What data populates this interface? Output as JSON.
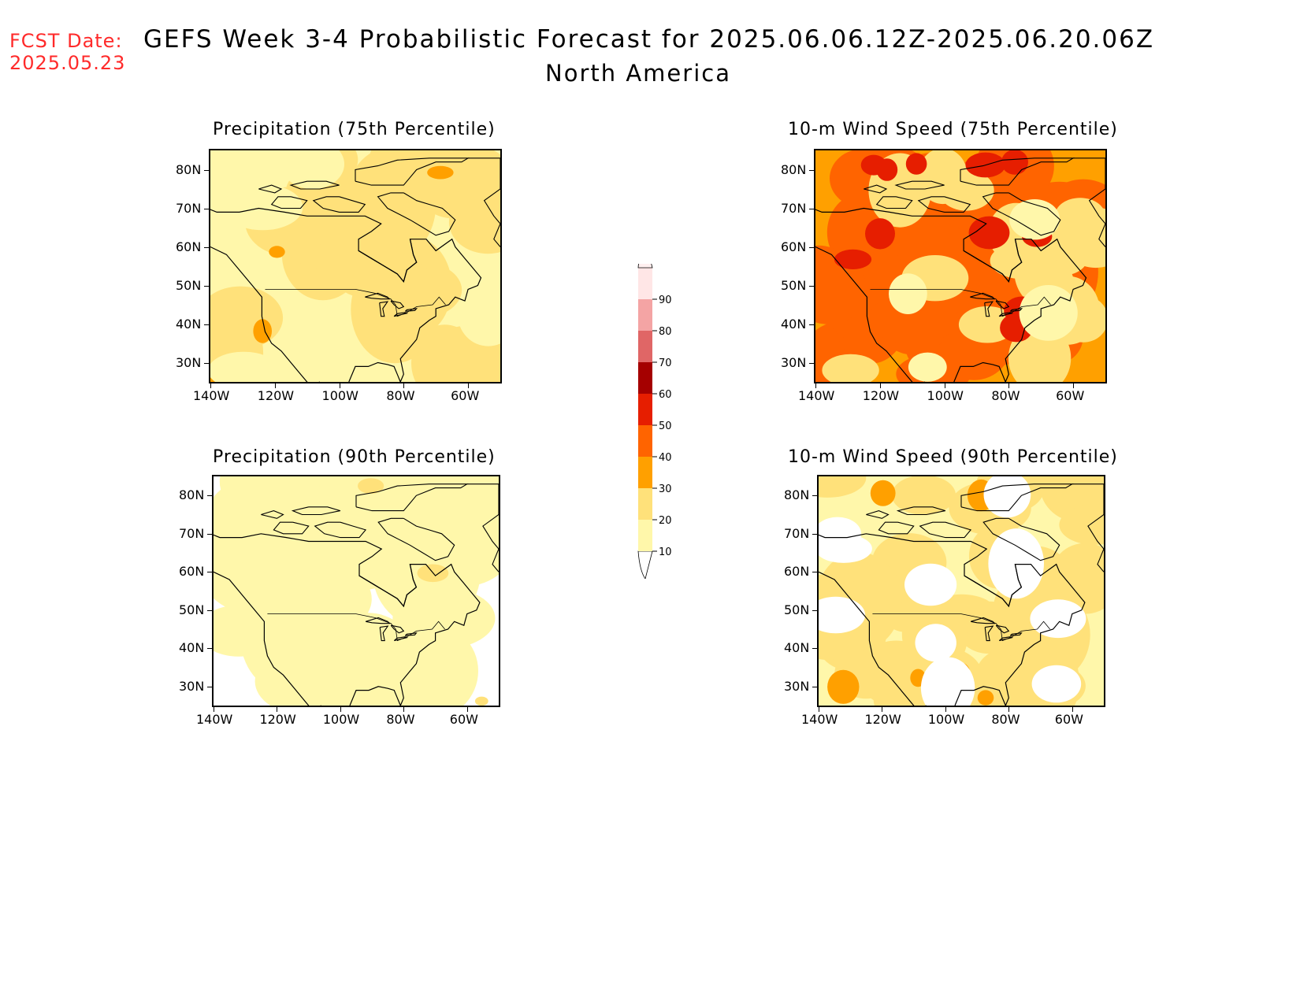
{
  "header": {
    "fcst_label": "FCST Date:",
    "fcst_date": "2025.05.23",
    "title": "GEFS Week 3-4 Probabilistic Forecast for 2025.06.06.12Z-2025.06.20.06Z",
    "subtitle": "North America"
  },
  "colors": {
    "c10": "#fff7aa",
    "c20": "#ffe17a",
    "c30": "#ffa000",
    "c40": "#ff6400",
    "c50": "#e61e00",
    "c60": "#a50000",
    "c70": "#e06666",
    "c80": "#f4a4a4",
    "c90": "#ffe6e6"
  },
  "legend": {
    "levels": [
      "10",
      "20",
      "30",
      "40",
      "50",
      "60",
      "70",
      "80",
      "90"
    ]
  },
  "panels": [
    {
      "title": "Precipitation (75th Percentile)",
      "lat_labels": [
        "80N",
        "70N",
        "60N",
        "50N",
        "40N",
        "30N"
      ],
      "lon_labels": [
        "140W",
        "120W",
        "100W",
        "80W",
        "60W"
      ],
      "dominant_level": "20"
    },
    {
      "title": "10-m Wind Speed (75th Percentile)",
      "lat_labels": [
        "80N",
        "70N",
        "60N",
        "50N",
        "40N",
        "30N"
      ],
      "lon_labels": [
        "140W",
        "120W",
        "100W",
        "80W",
        "60W"
      ],
      "dominant_level": "40"
    },
    {
      "title": "Precipitation (90th Percentile)",
      "lat_labels": [
        "80N",
        "70N",
        "60N",
        "50N",
        "40N",
        "30N"
      ],
      "lon_labels": [
        "140W",
        "120W",
        "100W",
        "80W",
        "60W"
      ],
      "dominant_level": "10"
    },
    {
      "title": "10-m Wind Speed (90th Percentile)",
      "lat_labels": [
        "80N",
        "70N",
        "60N",
        "50N",
        "40N",
        "30N"
      ],
      "lon_labels": [
        "140W",
        "120W",
        "100W",
        "80W",
        "60W"
      ],
      "dominant_level": "20"
    }
  ]
}
